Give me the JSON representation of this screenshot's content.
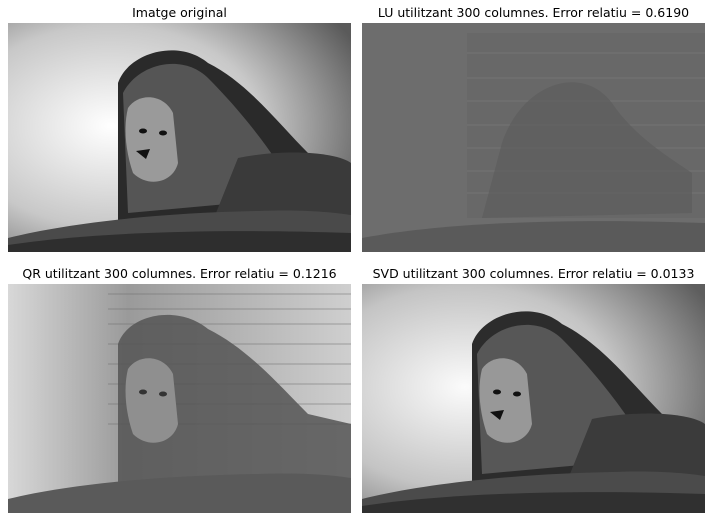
{
  "figure": {
    "panels": [
      {
        "title": "Imatge original"
      },
      {
        "title": "LU utilitzant 300 columnes. Error relatiu = 0.6190"
      },
      {
        "title": "QR utilitzant 300 columnes. Error relatiu = 0.1216"
      },
      {
        "title": "SVD utilitzant 300 columnes. Error relatiu = 0.0133"
      }
    ]
  }
}
